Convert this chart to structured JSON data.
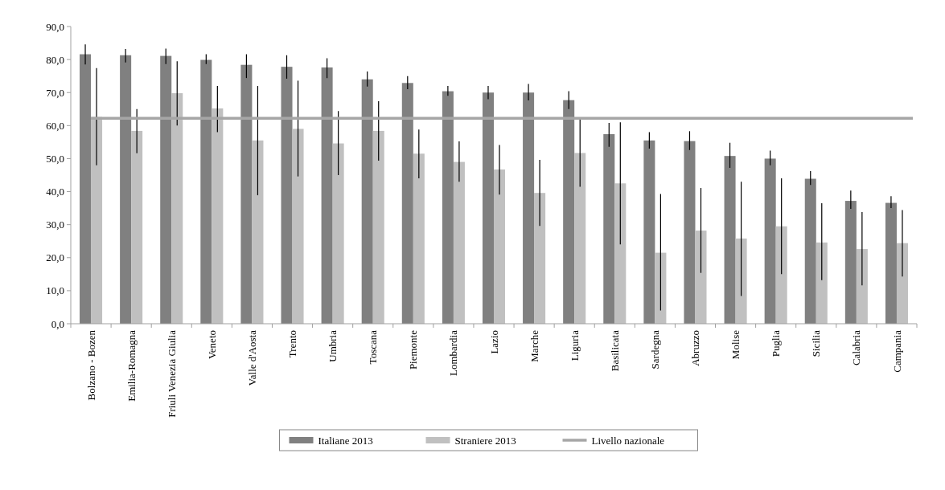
{
  "chart_data": {
    "type": "bar",
    "categories": [
      "Bolzano - Bozen",
      "Emilia-Romagna",
      "Friuli Venezia Giulia",
      "Veneto",
      "Valle d'Aosta",
      "Trento",
      "Umbria",
      "Toscana",
      "Piemonte",
      "Lombardia",
      "Lazio",
      "Marche",
      "Liguria",
      "Basilicata",
      "Sardegna",
      "Abruzzo",
      "Molise",
      "Puglia",
      "Sicilia",
      "Calabria",
      "Campania"
    ],
    "series": [
      {
        "name": "Italiane 2013",
        "color": "#808080",
        "values": [
          81.6,
          81.3,
          81.1,
          79.9,
          78.4,
          77.8,
          77.6,
          74.0,
          72.9,
          70.4,
          70.0,
          70.0,
          67.7,
          57.4,
          55.5,
          55.3,
          50.8,
          50.0,
          43.9,
          37.2,
          36.6
        ],
        "errors": [
          [
            78.5,
            84.6
          ],
          [
            79.1,
            83.2
          ],
          [
            78.6,
            83.3
          ],
          [
            78.6,
            81.6
          ],
          [
            74.4,
            81.6
          ],
          [
            74.2,
            81.3
          ],
          [
            74.4,
            80.4
          ],
          [
            71.8,
            76.4
          ],
          [
            71.0,
            75.0
          ],
          [
            69.0,
            72.0
          ],
          [
            68.0,
            72.0
          ],
          [
            67.6,
            72.6
          ],
          [
            65.0,
            70.4
          ],
          [
            53.6,
            60.8
          ],
          [
            53.0,
            58.0
          ],
          [
            52.6,
            58.3
          ],
          [
            47.2,
            54.8
          ],
          [
            48.0,
            52.4
          ],
          [
            42.0,
            46.2
          ],
          [
            34.8,
            40.3
          ],
          [
            35.0,
            38.6
          ]
        ]
      },
      {
        "name": "Straniere 2013",
        "color": "#c0c0c0",
        "values": [
          62.6,
          58.4,
          69.8,
          65.2,
          55.5,
          59.0,
          54.6,
          58.4,
          51.5,
          49.0,
          46.7,
          39.6,
          51.7,
          42.5,
          21.5,
          28.2,
          25.8,
          29.5,
          24.6,
          22.6,
          24.4
        ],
        "errors": [
          [
            48.0,
            77.4
          ],
          [
            51.6,
            65.0
          ],
          [
            60.0,
            79.5
          ],
          [
            58.0,
            72.0
          ],
          [
            38.9,
            72.0
          ],
          [
            44.6,
            73.6
          ],
          [
            45.0,
            64.4
          ],
          [
            49.4,
            67.4
          ],
          [
            44.0,
            58.8
          ],
          [
            43.0,
            55.2
          ],
          [
            39.1,
            54.1
          ],
          [
            29.6,
            49.6
          ],
          [
            41.5,
            62.0
          ],
          [
            24.0,
            61.0
          ],
          [
            4.0,
            39.3
          ],
          [
            15.4,
            41.1
          ],
          [
            8.4,
            43.0
          ],
          [
            15.0,
            44.0
          ],
          [
            13.2,
            36.5
          ],
          [
            11.6,
            33.8
          ],
          [
            14.3,
            34.4
          ]
        ]
      }
    ],
    "ref_lines": [
      {
        "axis": "y",
        "value": 62.2,
        "label": "Livello nazionale",
        "color": "#a6a6a6"
      }
    ],
    "ylim": [
      0,
      90
    ],
    "yticks": [
      {
        "value": 0,
        "label": "0,0"
      },
      {
        "value": 10,
        "label": "10,0"
      },
      {
        "value": 20,
        "label": "20,0"
      },
      {
        "value": 30,
        "label": "30,0"
      },
      {
        "value": 40,
        "label": "40,0"
      },
      {
        "value": 50,
        "label": "50,0"
      },
      {
        "value": 60,
        "label": "60,0"
      },
      {
        "value": 70,
        "label": "70,0"
      },
      {
        "value": 80,
        "label": "80,0"
      },
      {
        "value": 90,
        "label": "90,0"
      }
    ],
    "grid": false,
    "legend": "bottom"
  }
}
